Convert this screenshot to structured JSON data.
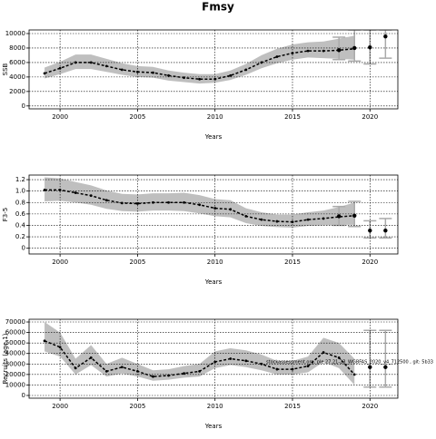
{
  "chart_data": [
    {
      "type": "line",
      "title": "Fmsy",
      "ylabel": "SSB",
      "xlabel": "Years",
      "xlim": [
        1998,
        2021.8
      ],
      "xticks": [
        2000,
        2005,
        2010,
        2015,
        2020
      ],
      "ylim": [
        -400,
        10500
      ],
      "yticks": [
        0,
        2000,
        4000,
        6000,
        8000,
        10000
      ],
      "grid": true,
      "color": "#000000",
      "band_color": "#aaaaaa",
      "bar_color": "#aaaaaa",
      "x": [
        1999,
        2000,
        2001,
        2002,
        2003,
        2004,
        2005,
        2006,
        2007,
        2008,
        2009,
        2010,
        2011,
        2012,
        2013,
        2014,
        2015,
        2016,
        2017,
        2018,
        2019
      ],
      "values": [
        4500,
        5200,
        6000,
        6000,
        5500,
        5000,
        4700,
        4600,
        4200,
        3900,
        3700,
        3700,
        4200,
        5000,
        6000,
        6800,
        7300,
        7600,
        7600,
        7700,
        7900
      ],
      "lower": [
        3800,
        4400,
        5100,
        5100,
        4700,
        4300,
        4000,
        3900,
        3500,
        3300,
        3100,
        3200,
        3600,
        4300,
        5200,
        5900,
        6400,
        6700,
        6600,
        6500,
        6400
      ],
      "upper": [
        5300,
        6100,
        7100,
        7100,
        6500,
        5900,
        5500,
        5400,
        4900,
        4600,
        4400,
        4400,
        4900,
        5800,
        7000,
        7900,
        8500,
        8800,
        8900,
        9300,
        9700
      ],
      "points": {
        "x": [
          2018,
          2019,
          2020,
          2021
        ],
        "values": [
          7700,
          8000,
          8100,
          9600
        ],
        "lower": [
          6400,
          6200,
          5800,
          6600
        ],
        "upper": [
          9500,
          10500,
          10500,
          10500
        ]
      }
    },
    {
      "type": "line",
      "ylabel": "F3-5",
      "xlabel": "Years",
      "xlim": [
        1998,
        2021.8
      ],
      "xticks": [
        2000,
        2005,
        2010,
        2015,
        2020
      ],
      "ylim": [
        -0.1,
        1.28
      ],
      "yticks": [
        0,
        0.2,
        0.4,
        0.6,
        0.8,
        1,
        {
          "value": 1,
          "label": "1.0"
        },
        1.2
      ],
      "grid": true,
      "color": "#000000",
      "band_color": "#aaaaaa",
      "bar_color": "#aaaaaa",
      "x": [
        1999,
        2000,
        2001,
        2002,
        2003,
        2004,
        2005,
        2006,
        2007,
        2008,
        2009,
        2010,
        2011,
        2012,
        2013,
        2014,
        2015,
        2016,
        2017,
        2018,
        2019
      ],
      "values": [
        1.02,
        1.02,
        0.97,
        0.92,
        0.84,
        0.79,
        0.78,
        0.8,
        0.8,
        0.8,
        0.76,
        0.7,
        0.68,
        0.56,
        0.5,
        0.47,
        0.46,
        0.5,
        0.52,
        0.55,
        0.57
      ],
      "lower": [
        0.82,
        0.83,
        0.8,
        0.76,
        0.69,
        0.65,
        0.64,
        0.66,
        0.66,
        0.65,
        0.61,
        0.56,
        0.54,
        0.44,
        0.39,
        0.37,
        0.36,
        0.39,
        0.4,
        0.41,
        0.41
      ],
      "upper": [
        1.24,
        1.22,
        1.16,
        1.1,
        1.01,
        0.95,
        0.94,
        0.96,
        0.96,
        0.97,
        0.93,
        0.86,
        0.84,
        0.7,
        0.63,
        0.59,
        0.59,
        0.63,
        0.66,
        0.72,
        0.8
      ],
      "points": {
        "x": [
          2018,
          2019,
          2020,
          2021
        ],
        "values": [
          0.56,
          0.57,
          0.31,
          0.31
        ],
        "lower": [
          0.4,
          0.38,
          0.18,
          0.18
        ],
        "upper": [
          0.73,
          0.82,
          0.48,
          0.52
        ]
      }
    },
    {
      "type": "line",
      "ylabel": "Recruits (age 1)",
      "xlabel": "Years",
      "annotation": "stockassessment.org, ple.27.21-23_WGBFAS_2020_v4_712500 , git: 5b33",
      "xlim": [
        1998,
        2021.8
      ],
      "xticks": [
        2000,
        2005,
        2010,
        2015,
        2020
      ],
      "ylim": [
        -2600,
        72600
      ],
      "yticks": [
        0,
        10000,
        20000,
        30000,
        40000,
        50000,
        60000,
        70000
      ],
      "grid": true,
      "color": "#000000",
      "band_color": "#aaaaaa",
      "bar_color": "#aaaaaa",
      "x": [
        1999,
        2000,
        2001,
        2002,
        2003,
        2004,
        2005,
        2006,
        2007,
        2008,
        2009,
        2010,
        2011,
        2012,
        2013,
        2014,
        2015,
        2016,
        2017,
        2018,
        2019
      ],
      "values": [
        52000,
        46000,
        26000,
        36000,
        23000,
        27000,
        23000,
        18000,
        19000,
        21000,
        23000,
        32000,
        35000,
        33000,
        30000,
        25000,
        25000,
        28000,
        41000,
        36000,
        20000
      ],
      "lower": [
        42000,
        37000,
        20000,
        29000,
        18000,
        21000,
        18000,
        14000,
        15000,
        17000,
        18000,
        26000,
        29000,
        27000,
        24000,
        20000,
        20000,
        22000,
        32000,
        26000,
        10000
      ],
      "upper": [
        70000,
        60000,
        35000,
        48000,
        30000,
        36000,
        30000,
        24000,
        25000,
        28000,
        30000,
        42000,
        45000,
        43000,
        39000,
        33000,
        33000,
        37000,
        55000,
        50000,
        35000
      ],
      "points": {
        "x": [
          2020,
          2021
        ],
        "values": [
          27000,
          27000
        ],
        "lower": [
          8000,
          8000
        ],
        "upper": [
          62000,
          62000
        ]
      }
    }
  ]
}
